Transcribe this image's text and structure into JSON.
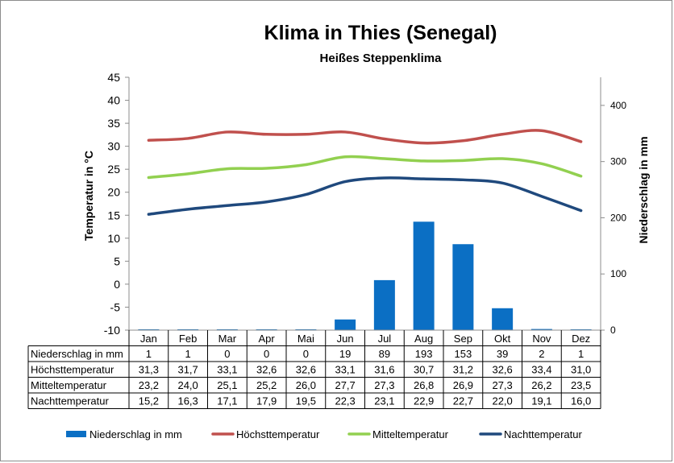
{
  "chart_data": {
    "type": "bar+line",
    "title": "Klima in Thies (Senegal)",
    "subtitle": "Heißes Steppenklima",
    "ylabel_left": "Temperatur in °C",
    "ylabel_right": "Niederschlag in mm",
    "ylim_left": [
      -10,
      45
    ],
    "ylim_right": [
      0,
      450
    ],
    "yticks_left": [
      "45",
      "40",
      "35",
      "30",
      "25",
      "20",
      "15",
      "10",
      "5",
      "0",
      "-5",
      "-10"
    ],
    "yticks_right": [
      "400",
      "300",
      "200",
      "100",
      "0"
    ],
    "categories": [
      "Jan",
      "Feb",
      "Mar",
      "Apr",
      "Mai",
      "Jun",
      "Jul",
      "Aug",
      "Sep",
      "Okt",
      "Nov",
      "Dez"
    ],
    "series": [
      {
        "name": "Niederschlag in mm",
        "type": "bar",
        "axis": "right",
        "color": "#0b6fc4",
        "values": [
          1,
          1,
          0,
          0,
          0,
          19,
          89,
          193,
          153,
          39,
          2,
          1
        ],
        "labels": [
          "1",
          "1",
          "0",
          "0",
          "0",
          "19",
          "89",
          "193",
          "153",
          "39",
          "2",
          "1"
        ]
      },
      {
        "name": "Höchsttemperatur",
        "type": "line",
        "axis": "left",
        "color": "#c0504d",
        "values": [
          31.3,
          31.7,
          33.1,
          32.6,
          32.6,
          33.1,
          31.6,
          30.7,
          31.2,
          32.6,
          33.4,
          31.0
        ],
        "labels": [
          "31,3",
          "31,7",
          "33,1",
          "32,6",
          "32,6",
          "33,1",
          "31,6",
          "30,7",
          "31,2",
          "32,6",
          "33,4",
          "31,0"
        ]
      },
      {
        "name": "Mitteltemperatur",
        "type": "line",
        "axis": "left",
        "color": "#92d050",
        "values": [
          23.2,
          24.0,
          25.1,
          25.2,
          26.0,
          27.7,
          27.3,
          26.8,
          26.9,
          27.3,
          26.2,
          23.5
        ],
        "labels": [
          "23,2",
          "24,0",
          "25,1",
          "25,2",
          "26,0",
          "27,7",
          "27,3",
          "26,8",
          "26,9",
          "27,3",
          "26,2",
          "23,5"
        ]
      },
      {
        "name": "Nachttemperatur",
        "type": "line",
        "axis": "left",
        "color": "#1f497d",
        "values": [
          15.2,
          16.3,
          17.1,
          17.9,
          19.5,
          22.3,
          23.1,
          22.9,
          22.7,
          22.0,
          19.1,
          16.0
        ],
        "labels": [
          "15,2",
          "16,3",
          "17,1",
          "17,9",
          "19,5",
          "22,3",
          "23,1",
          "22,9",
          "22,7",
          "22,0",
          "19,1",
          "16,0"
        ]
      }
    ],
    "legend": "bottom",
    "grid": false
  }
}
